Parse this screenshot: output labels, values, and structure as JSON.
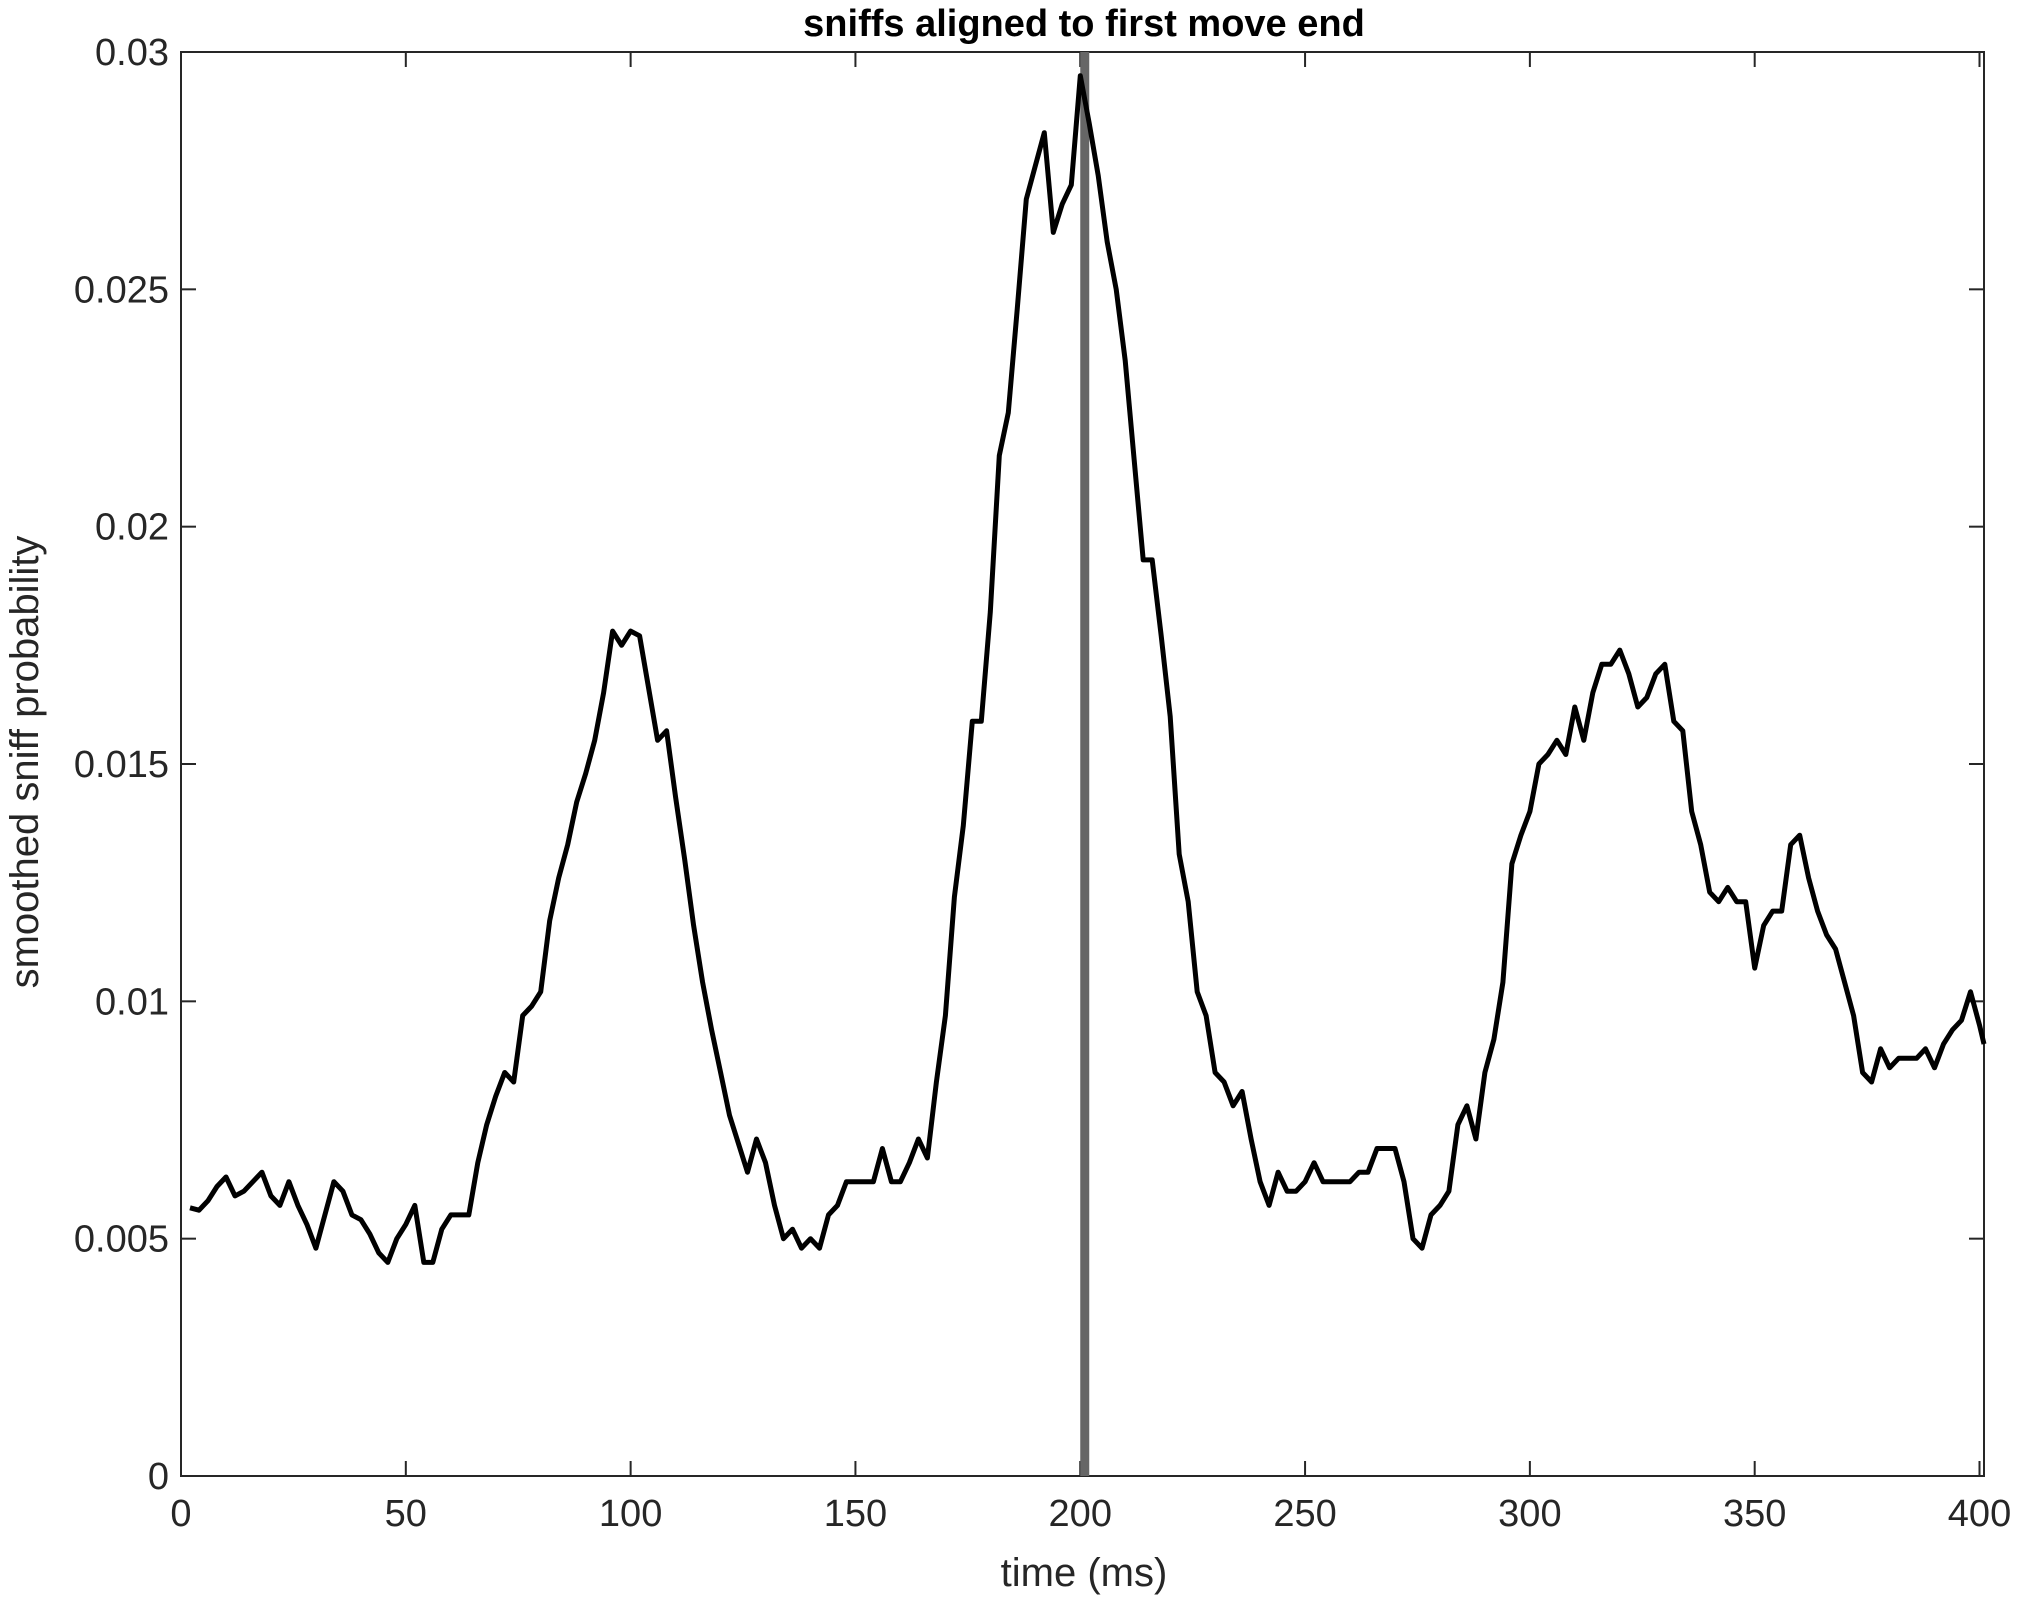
{
  "chart_data": {
    "type": "line",
    "title": "sniffs aligned to first move end",
    "xlabel": "time (ms)",
    "ylabel": "smoothed sniff probability",
    "xlim": [
      0,
      401
    ],
    "ylim": [
      0,
      0.03
    ],
    "xticks": [
      0,
      50,
      100,
      150,
      200,
      250,
      300,
      350,
      400
    ],
    "xtick_labels": [
      "0",
      "50",
      "100",
      "150",
      "200",
      "250",
      "300",
      "350",
      "400"
    ],
    "yticks": [
      0,
      0.005,
      0.01,
      0.015,
      0.02,
      0.025,
      0.03
    ],
    "ytick_labels": [
      "0",
      "0.005",
      "0.01",
      "0.015",
      "0.02",
      "0.025",
      "0.03"
    ],
    "box": true,
    "grid": false,
    "vertical_marker": {
      "x": 201,
      "color": "#666666"
    },
    "series": [
      {
        "color": "#000000",
        "x": [
          2,
          4,
          6,
          8,
          10,
          12,
          14,
          16,
          18,
          20,
          22,
          24,
          26,
          28,
          30,
          32,
          34,
          36,
          38,
          40,
          42,
          44,
          46,
          48,
          50,
          52,
          54,
          56,
          58,
          60,
          62,
          64,
          66,
          68,
          70,
          72,
          74,
          76,
          78,
          80,
          82,
          84,
          86,
          88,
          90,
          92,
          94,
          96,
          98,
          100,
          102,
          104,
          106,
          108,
          110,
          112,
          114,
          116,
          118,
          120,
          122,
          124,
          126,
          128,
          130,
          132,
          134,
          136,
          138,
          140,
          142,
          144,
          146,
          148,
          150,
          152,
          154,
          156,
          158,
          160,
          162,
          164,
          166,
          168,
          170,
          172,
          174,
          176,
          178,
          180,
          182,
          184,
          186,
          188,
          190,
          192,
          194,
          196,
          198,
          200,
          202,
          204,
          206,
          208,
          210,
          212,
          214,
          216,
          218,
          220,
          222,
          224,
          226,
          228,
          230,
          232,
          234,
          236,
          238,
          240,
          242,
          244,
          246,
          248,
          250,
          252,
          254,
          256,
          258,
          260,
          262,
          264,
          266,
          268,
          270,
          272,
          274,
          276,
          278,
          280,
          282,
          284,
          286,
          288,
          290,
          292,
          294,
          296,
          298,
          300,
          302,
          304,
          306,
          308,
          310,
          312,
          314,
          316,
          318,
          320,
          322,
          324,
          326,
          328,
          330,
          332,
          334,
          336,
          338,
          340,
          342,
          344,
          346,
          348,
          350,
          352,
          354,
          356,
          358,
          360,
          362,
          364,
          366,
          368,
          370,
          372,
          374,
          376,
          378,
          380,
          382,
          384,
          386,
          388,
          390,
          392,
          394,
          396,
          398,
          400,
          401
        ],
        "y": [
          0.00565,
          0.0056,
          0.0058,
          0.0061,
          0.0063,
          0.0059,
          0.006,
          0.0062,
          0.0064,
          0.0059,
          0.0057,
          0.0062,
          0.0057,
          0.0053,
          0.0048,
          0.0055,
          0.0062,
          0.006,
          0.0055,
          0.0054,
          0.0051,
          0.0047,
          0.0045,
          0.005,
          0.0053,
          0.0057,
          0.0045,
          0.0045,
          0.0052,
          0.0055,
          0.0055,
          0.0055,
          0.0066,
          0.0074,
          0.008,
          0.0085,
          0.0083,
          0.0097,
          0.0099,
          0.0102,
          0.0117,
          0.0126,
          0.0133,
          0.0142,
          0.0148,
          0.0155,
          0.0165,
          0.0178,
          0.0175,
          0.0178,
          0.0177,
          0.0166,
          0.0155,
          0.0157,
          0.0143,
          0.013,
          0.0116,
          0.0104,
          0.0094,
          0.0085,
          0.0076,
          0.007,
          0.0064,
          0.0071,
          0.0066,
          0.0057,
          0.005,
          0.0052,
          0.0048,
          0.005,
          0.0048,
          0.0055,
          0.0057,
          0.0062,
          0.0062,
          0.0062,
          0.0062,
          0.0069,
          0.0062,
          0.0062,
          0.0066,
          0.0071,
          0.0067,
          0.0083,
          0.0097,
          0.0122,
          0.0137,
          0.0159,
          0.0159,
          0.0182,
          0.0215,
          0.0224,
          0.0246,
          0.0269,
          0.0276,
          0.0283,
          0.0262,
          0.0268,
          0.0272,
          0.0295,
          0.0285,
          0.0274,
          0.026,
          0.025,
          0.0235,
          0.0214,
          0.0193,
          0.0193,
          0.0177,
          0.016,
          0.0131,
          0.0121,
          0.0102,
          0.0097,
          0.0085,
          0.0083,
          0.0078,
          0.0081,
          0.0071,
          0.0062,
          0.0057,
          0.0064,
          0.006,
          0.006,
          0.0062,
          0.0066,
          0.0062,
          0.0062,
          0.0062,
          0.0062,
          0.0064,
          0.0064,
          0.0069,
          0.0069,
          0.0069,
          0.0062,
          0.005,
          0.0048,
          0.0055,
          0.0057,
          0.006,
          0.0074,
          0.0078,
          0.0071,
          0.0085,
          0.0092,
          0.0104,
          0.0129,
          0.0135,
          0.014,
          0.015,
          0.0152,
          0.0155,
          0.0152,
          0.0162,
          0.0155,
          0.0165,
          0.0171,
          0.0171,
          0.0174,
          0.0169,
          0.0162,
          0.0164,
          0.0169,
          0.0171,
          0.0159,
          0.0157,
          0.014,
          0.0133,
          0.0123,
          0.0121,
          0.0124,
          0.0121,
          0.0121,
          0.0107,
          0.0116,
          0.0119,
          0.0119,
          0.0133,
          0.0135,
          0.0126,
          0.0119,
          0.0114,
          0.0111,
          0.0104,
          0.0097,
          0.0085,
          0.0083,
          0.009,
          0.0086,
          0.0088,
          0.0088,
          0.0088,
          0.009,
          0.0086,
          0.0091,
          0.0094,
          0.0096,
          0.0102,
          0.0095,
          0.0091
        ]
      }
    ]
  }
}
